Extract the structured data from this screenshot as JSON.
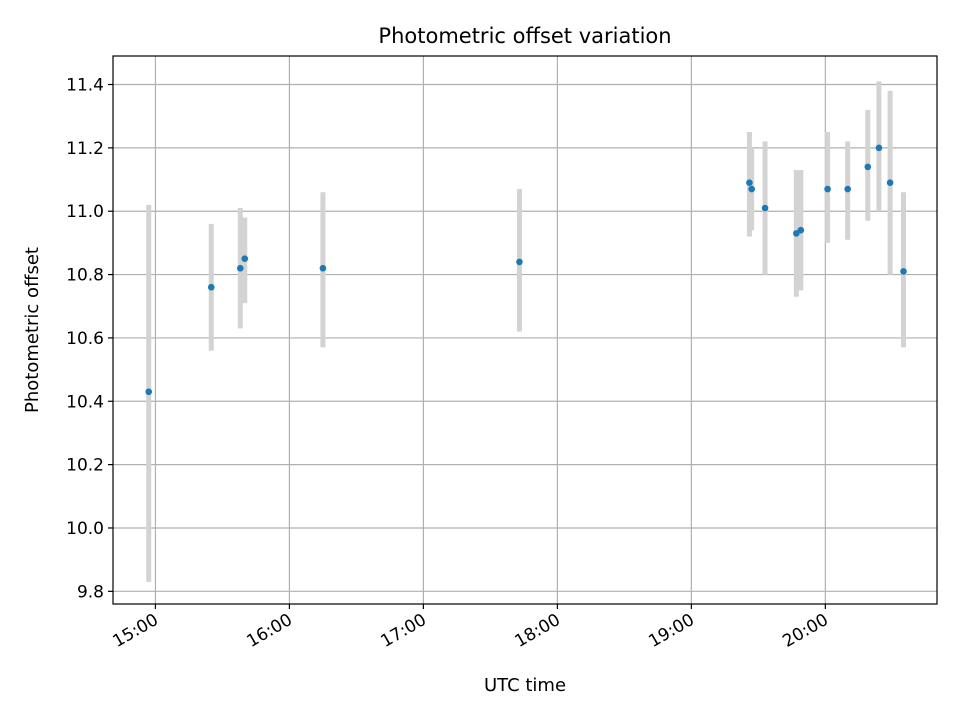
{
  "chart_data": {
    "type": "scatter",
    "title": "Photometric offset variation",
    "xlabel": "UTC time",
    "ylabel": "Photometric offset",
    "x_axis": {
      "type": "time",
      "range": [
        "14:41",
        "20:50"
      ],
      "ticks": [
        "15:00",
        "16:00",
        "17:00",
        "18:00",
        "19:00",
        "20:00"
      ]
    },
    "y_axis": {
      "range": [
        9.76,
        11.49
      ],
      "ticks": [
        9.8,
        10.0,
        10.2,
        10.4,
        10.6,
        10.8,
        11.0,
        11.2,
        11.4
      ],
      "tick_labels": [
        "9.8",
        "10.0",
        "10.2",
        "10.4",
        "10.6",
        "10.8",
        "11.0",
        "11.2",
        "11.4"
      ]
    },
    "grid": true,
    "colors": {
      "point": "#1f77b4",
      "errorbar": "#d3d3d3",
      "grid": "#b0b0b0"
    },
    "points": [
      {
        "time": "14:57",
        "y": 10.43,
        "ylo": 9.83,
        "yhi": 11.02
      },
      {
        "time": "15:25",
        "y": 10.76,
        "ylo": 10.56,
        "yhi": 10.96
      },
      {
        "time": "15:38",
        "y": 10.82,
        "ylo": 10.63,
        "yhi": 11.01
      },
      {
        "time": "15:40",
        "y": 10.85,
        "ylo": 10.71,
        "yhi": 10.98
      },
      {
        "time": "16:15",
        "y": 10.82,
        "ylo": 10.57,
        "yhi": 11.06
      },
      {
        "time": "17:43",
        "y": 10.84,
        "ylo": 10.62,
        "yhi": 11.07
      },
      {
        "time": "19:26",
        "y": 11.09,
        "ylo": 10.92,
        "yhi": 11.25
      },
      {
        "time": "19:27",
        "y": 11.07,
        "ylo": 10.94,
        "yhi": 11.2
      },
      {
        "time": "19:33",
        "y": 11.01,
        "ylo": 10.8,
        "yhi": 11.22
      },
      {
        "time": "19:47",
        "y": 10.93,
        "ylo": 10.73,
        "yhi": 11.13
      },
      {
        "time": "19:49",
        "y": 10.94,
        "ylo": 10.75,
        "yhi": 11.13
      },
      {
        "time": "20:01",
        "y": 11.07,
        "ylo": 10.9,
        "yhi": 11.25
      },
      {
        "time": "20:10",
        "y": 11.07,
        "ylo": 10.91,
        "yhi": 11.22
      },
      {
        "time": "20:19",
        "y": 11.14,
        "ylo": 10.97,
        "yhi": 11.32
      },
      {
        "time": "20:24",
        "y": 11.2,
        "ylo": 11.0,
        "yhi": 11.41
      },
      {
        "time": "20:29",
        "y": 11.09,
        "ylo": 10.8,
        "yhi": 11.38
      },
      {
        "time": "20:35",
        "y": 10.81,
        "ylo": 10.57,
        "yhi": 11.06
      }
    ]
  }
}
